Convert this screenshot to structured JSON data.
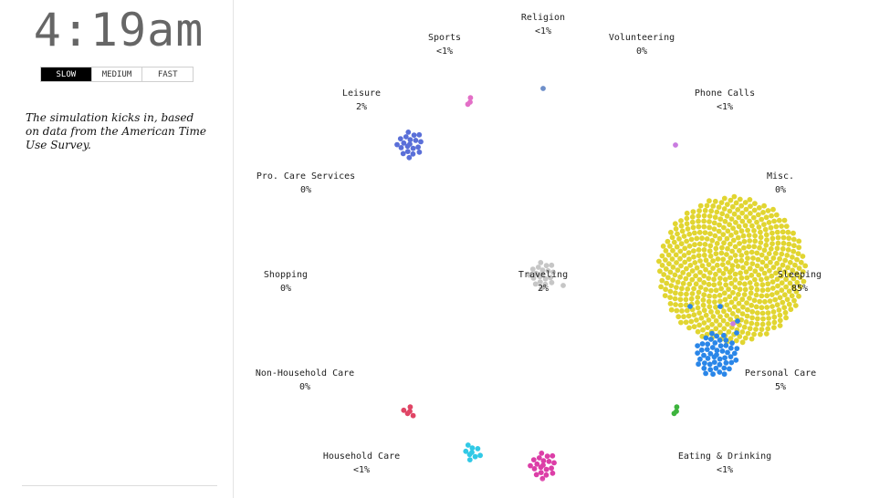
{
  "clock": "4:19am",
  "speed": {
    "options": [
      "SLOW",
      "MEDIUM",
      "FAST"
    ],
    "selected": "SLOW"
  },
  "narration": "The simulation kicks in, based on data from the American Time Use Survey.",
  "activities": [
    {
      "key": "religion",
      "name": "Religion",
      "pct": "<1%",
      "color": "#6e8fc9",
      "share": 0.001
    },
    {
      "key": "sports",
      "name": "Sports",
      "pct": "<1%",
      "color": "#e36fc7",
      "share": 0.003
    },
    {
      "key": "volunteering",
      "name": "Volunteering",
      "pct": "0%",
      "color": "#999999",
      "share": 0
    },
    {
      "key": "leisure",
      "name": "Leisure",
      "pct": "2%",
      "color": "#5a6fd8",
      "share": 0.02
    },
    {
      "key": "phone-calls",
      "name": "Phone Calls",
      "pct": "<1%",
      "color": "#c97be0",
      "share": 0.001
    },
    {
      "key": "pro-care-services",
      "name": "Pro. Care Services",
      "pct": "0%",
      "color": "#999999",
      "share": 0
    },
    {
      "key": "misc",
      "name": "Misc.",
      "pct": "0%",
      "color": "#999999",
      "share": 0
    },
    {
      "key": "shopping",
      "name": "Shopping",
      "pct": "0%",
      "color": "#999999",
      "share": 0
    },
    {
      "key": "traveling",
      "name": "Traveling",
      "pct": "2%",
      "color": "#c6c6c6",
      "share": 0.02
    },
    {
      "key": "sleeping",
      "name": "Sleeping",
      "pct": "85%",
      "color": "#e1d531",
      "share": 0.85
    },
    {
      "key": "non-household-care",
      "name": "Non-Household Care",
      "pct": "0%",
      "color": "#999999",
      "share": 0
    },
    {
      "key": "personal-care",
      "name": "Personal Care",
      "pct": "5%",
      "color": "#2a86e8",
      "share": 0.05
    },
    {
      "key": "household-care",
      "name": "Household Care",
      "pct": "<1%",
      "color": "#31c9e6",
      "share": 0.009
    },
    {
      "key": "eating-drinking",
      "name": "Eating & Drinking",
      "pct": "<1%",
      "color": "#3db43d",
      "share": 0.003
    },
    {
      "key": "work",
      "name": "",
      "pct": "",
      "color": "#dc3ea7",
      "share": 0.02
    },
    {
      "key": "education",
      "name": "",
      "pct": "",
      "color": "#e04565",
      "share": 0.005
    }
  ]
}
